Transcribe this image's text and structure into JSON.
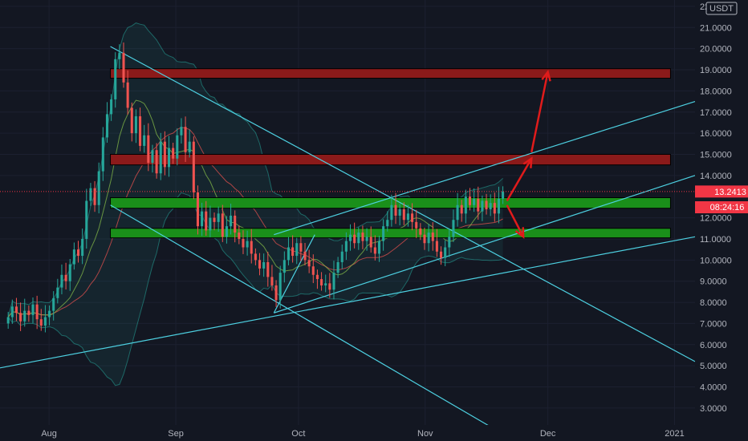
{
  "currency": "USDT",
  "last_price_label": "13.2413",
  "countdown_label": "08:24:16",
  "colors": {
    "background": "#131722",
    "grid": "#1c2030",
    "candle_up": "#26a69a",
    "candle_down": "#ef5350",
    "resistance_zone": "#8b1a1a",
    "support_zone": "#1a8f1a",
    "trendline": "#4dd0e1",
    "arrow": "#e01b1b",
    "axis_text": "#b2b5be",
    "price_tag": "#f23645"
  },
  "chart_data": {
    "type": "candlestick",
    "x_tick_labels": [
      "Aug",
      "Sep",
      "Oct",
      "Nov",
      "Dec",
      "2021"
    ],
    "x_tick_dates": [
      "2020-08-01",
      "2020-09-01",
      "2020-10-01",
      "2020-11-01",
      "2020-12-01",
      "2021-01-01"
    ],
    "y_tick_labels": [
      "3.0000",
      "4.0000",
      "5.0000",
      "6.0000",
      "7.0000",
      "8.0000",
      "9.0000",
      "10.0000",
      "11.0000",
      "12.0000",
      "14.0000",
      "15.0000",
      "16.0000",
      "17.0000",
      "18.0000",
      "19.0000",
      "20.0000",
      "21.0000",
      "22.0000"
    ],
    "y_tick_values": [
      3,
      4,
      5,
      6,
      7,
      8,
      9,
      10,
      11,
      12,
      14,
      15,
      16,
      17,
      18,
      19,
      20,
      21,
      22
    ],
    "ylim": [
      2.2,
      22.3
    ],
    "xlim": [
      "2020-07-20",
      "2021-01-06"
    ],
    "last_price": 13.2413,
    "candles_close": [
      7.3,
      7.8,
      7.5,
      7.1,
      7.6,
      7.4,
      7.9,
      7.2,
      6.9,
      7.3,
      7.6,
      8.2,
      8.7,
      9.3,
      9.0,
      9.8,
      10.5,
      10.2,
      11.0,
      12.8,
      13.4,
      12.6,
      14.2,
      15.8,
      16.9,
      17.6,
      19.5,
      19.8,
      18.4,
      17.2,
      16.0,
      16.8,
      15.4,
      15.9,
      14.6,
      15.2,
      14.1,
      15.6,
      14.4,
      15.3,
      14.8,
      15.9,
      16.3,
      15.1,
      15.6,
      13.2,
      11.6,
      12.3,
      11.4,
      12.0,
      11.8,
      12.2,
      11.1,
      11.6,
      12.1,
      11.3,
      11.0,
      10.6,
      10.9,
      10.3,
      10.0,
      9.6,
      9.9,
      9.2,
      8.8,
      8.1,
      9.4,
      10.0,
      10.6,
      10.2,
      10.8,
      10.4,
      10.0,
      9.7,
      9.3,
      9.1,
      8.8,
      8.9,
      8.6,
      9.4,
      9.9,
      10.4,
      10.9,
      11.2,
      10.8,
      11.3,
      10.9,
      11.1,
      10.6,
      10.3,
      10.9,
      11.6,
      11.9,
      12.6,
      12.1,
      12.4,
      11.9,
      12.2,
      11.8,
      11.5,
      11.2,
      10.8,
      11.3,
      10.9,
      10.4,
      10.1,
      10.6,
      11.1,
      11.9,
      12.6,
      12.2,
      13.0,
      12.6,
      12.9,
      12.3,
      12.8,
      12.4,
      12.7,
      12.2,
      12.9,
      13.24
    ],
    "zones": [
      {
        "type": "resistance",
        "low": 18.6,
        "high": 19.05
      },
      {
        "type": "resistance",
        "low": 14.5,
        "high": 15.0
      },
      {
        "type": "support",
        "low": 12.45,
        "high": 12.95
      },
      {
        "type": "support",
        "low": 11.05,
        "high": 11.5
      }
    ]
  }
}
